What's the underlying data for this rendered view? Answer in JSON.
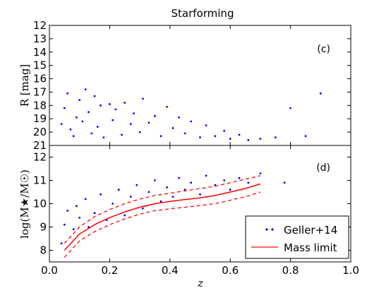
{
  "chart_data": [
    {
      "type": "scatter",
      "panel_label": "(c)",
      "title": "Starforming",
      "xlabel": "",
      "ylabel": "R [mag]",
      "xlim": [
        0.0,
        1.0
      ],
      "ylim": [
        21,
        12
      ],
      "yticks": [
        "12",
        "13",
        "14",
        "15",
        "16",
        "17",
        "18",
        "19",
        "20",
        "21"
      ],
      "grid": false,
      "series": [
        {
          "name": "",
          "color": "#0000ff",
          "points": [
            [
              0.04,
              19.4
            ],
            [
              0.05,
              18.2
            ],
            [
              0.06,
              17.1
            ],
            [
              0.07,
              19.8
            ],
            [
              0.08,
              20.3
            ],
            [
              0.09,
              18.9
            ],
            [
              0.1,
              17.6
            ],
            [
              0.11,
              19.2
            ],
            [
              0.12,
              16.8
            ],
            [
              0.13,
              18.5
            ],
            [
              0.14,
              20.1
            ],
            [
              0.15,
              17.3
            ],
            [
              0.16,
              19.6
            ],
            [
              0.17,
              18.0
            ],
            [
              0.18,
              20.4
            ],
            [
              0.2,
              17.9
            ],
            [
              0.21,
              19.1
            ],
            [
              0.22,
              18.3
            ],
            [
              0.24,
              20.2
            ],
            [
              0.25,
              17.8
            ],
            [
              0.27,
              19.4
            ],
            [
              0.28,
              18.6
            ],
            [
              0.3,
              20.0
            ],
            [
              0.31,
              17.5
            ],
            [
              0.33,
              19.3
            ],
            [
              0.35,
              18.8
            ],
            [
              0.37,
              20.3
            ],
            [
              0.39,
              18.1
            ],
            [
              0.41,
              19.7
            ],
            [
              0.43,
              18.9
            ],
            [
              0.45,
              20.1
            ],
            [
              0.47,
              19.2
            ],
            [
              0.5,
              20.4
            ],
            [
              0.52,
              19.5
            ],
            [
              0.55,
              20.3
            ],
            [
              0.58,
              19.9
            ],
            [
              0.6,
              20.5
            ],
            [
              0.63,
              20.2
            ],
            [
              0.66,
              20.6
            ],
            [
              0.7,
              20.5
            ],
            [
              0.75,
              20.4
            ],
            [
              0.8,
              18.2
            ],
            [
              0.85,
              20.3
            ],
            [
              0.9,
              17.1
            ]
          ]
        }
      ]
    },
    {
      "type": "scatter",
      "panel_label": "(d)",
      "xlabel": "z",
      "ylabel": "log(M★/M☉)",
      "xlim": [
        0.0,
        1.0
      ],
      "ylim": [
        7.5,
        12.5
      ],
      "xticks": [
        "0.0",
        "0.2",
        "0.4",
        "0.6",
        "0.8",
        "1.0"
      ],
      "yticks": [
        "8",
        "9",
        "10",
        "11",
        "12"
      ],
      "grid": false,
      "legend": {
        "placement": "bottom-right",
        "entries": [
          "Geller+14",
          "Mass limit"
        ]
      },
      "series": [
        {
          "name": "Geller+14",
          "color": "#0000ff",
          "points": [
            [
              0.04,
              8.3
            ],
            [
              0.05,
              9.1
            ],
            [
              0.06,
              9.7
            ],
            [
              0.08,
              8.9
            ],
            [
              0.09,
              9.9
            ],
            [
              0.1,
              9.4
            ],
            [
              0.12,
              10.2
            ],
            [
              0.13,
              9.0
            ],
            [
              0.15,
              9.6
            ],
            [
              0.17,
              10.4
            ],
            [
              0.19,
              9.3
            ],
            [
              0.21,
              10.0
            ],
            [
              0.23,
              10.6
            ],
            [
              0.25,
              9.5
            ],
            [
              0.27,
              10.3
            ],
            [
              0.29,
              10.8
            ],
            [
              0.31,
              9.8
            ],
            [
              0.33,
              10.5
            ],
            [
              0.35,
              11.0
            ],
            [
              0.37,
              10.1
            ],
            [
              0.39,
              10.7
            ],
            [
              0.41,
              10.3
            ],
            [
              0.43,
              11.1
            ],
            [
              0.45,
              10.6
            ],
            [
              0.47,
              10.9
            ],
            [
              0.5,
              10.4
            ],
            [
              0.52,
              11.2
            ],
            [
              0.55,
              10.8
            ],
            [
              0.58,
              11.0
            ],
            [
              0.6,
              10.6
            ],
            [
              0.63,
              11.1
            ],
            [
              0.66,
              10.9
            ],
            [
              0.7,
              11.3
            ],
            [
              0.78,
              10.9
            ]
          ]
        },
        {
          "name": "Mass limit",
          "color": "#ff0000",
          "line": [
            [
              0.05,
              8.0
            ],
            [
              0.1,
              8.7
            ],
            [
              0.15,
              9.1
            ],
            [
              0.2,
              9.4
            ],
            [
              0.25,
              9.65
            ],
            [
              0.3,
              9.85
            ],
            [
              0.35,
              10.0
            ],
            [
              0.4,
              10.1
            ],
            [
              0.45,
              10.18
            ],
            [
              0.5,
              10.25
            ],
            [
              0.55,
              10.35
            ],
            [
              0.6,
              10.5
            ],
            [
              0.65,
              10.65
            ],
            [
              0.7,
              10.85
            ]
          ],
          "upper": [
            [
              0.05,
              8.3
            ],
            [
              0.1,
              9.0
            ],
            [
              0.15,
              9.45
            ],
            [
              0.2,
              9.75
            ],
            [
              0.25,
              10.0
            ],
            [
              0.3,
              10.2
            ],
            [
              0.35,
              10.35
            ],
            [
              0.4,
              10.45
            ],
            [
              0.45,
              10.55
            ],
            [
              0.5,
              10.65
            ],
            [
              0.55,
              10.75
            ],
            [
              0.6,
              10.9
            ],
            [
              0.65,
              11.05
            ],
            [
              0.7,
              11.2
            ]
          ],
          "lower": [
            [
              0.05,
              7.7
            ],
            [
              0.1,
              8.4
            ],
            [
              0.15,
              8.8
            ],
            [
              0.2,
              9.1
            ],
            [
              0.25,
              9.35
            ],
            [
              0.3,
              9.55
            ],
            [
              0.35,
              9.7
            ],
            [
              0.4,
              9.78
            ],
            [
              0.45,
              9.85
            ],
            [
              0.5,
              9.92
            ],
            [
              0.55,
              10.0
            ],
            [
              0.6,
              10.15
            ],
            [
              0.65,
              10.3
            ],
            [
              0.7,
              10.5
            ]
          ]
        }
      ]
    }
  ]
}
